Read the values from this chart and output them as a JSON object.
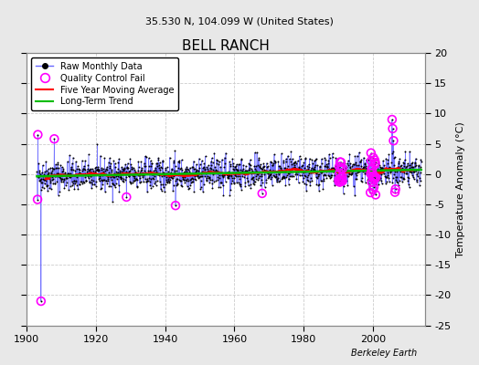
{
  "title": "BELL RANCH",
  "subtitle": "35.530 N, 104.099 W (United States)",
  "ylabel": "Temperature Anomaly (°C)",
  "xlabel_credit": "Berkeley Earth",
  "ylim": [
    -25,
    20
  ],
  "yticks": [
    -25,
    -20,
    -15,
    -10,
    -5,
    0,
    5,
    10,
    15,
    20
  ],
  "xlim": [
    1900,
    2015
  ],
  "xticks": [
    1900,
    1920,
    1940,
    1960,
    1980,
    2000
  ],
  "fig_bg_color": "#e8e8e8",
  "plot_bg_color": "#ffffff",
  "grid_color": "#cccccc",
  "raw_line_color": "#6666ff",
  "raw_dot_color": "black",
  "qc_fail_color": "magenta",
  "moving_avg_color": "red",
  "trend_color": "#00bb00",
  "seed": 42,
  "start_year": 1903,
  "end_year": 2013
}
